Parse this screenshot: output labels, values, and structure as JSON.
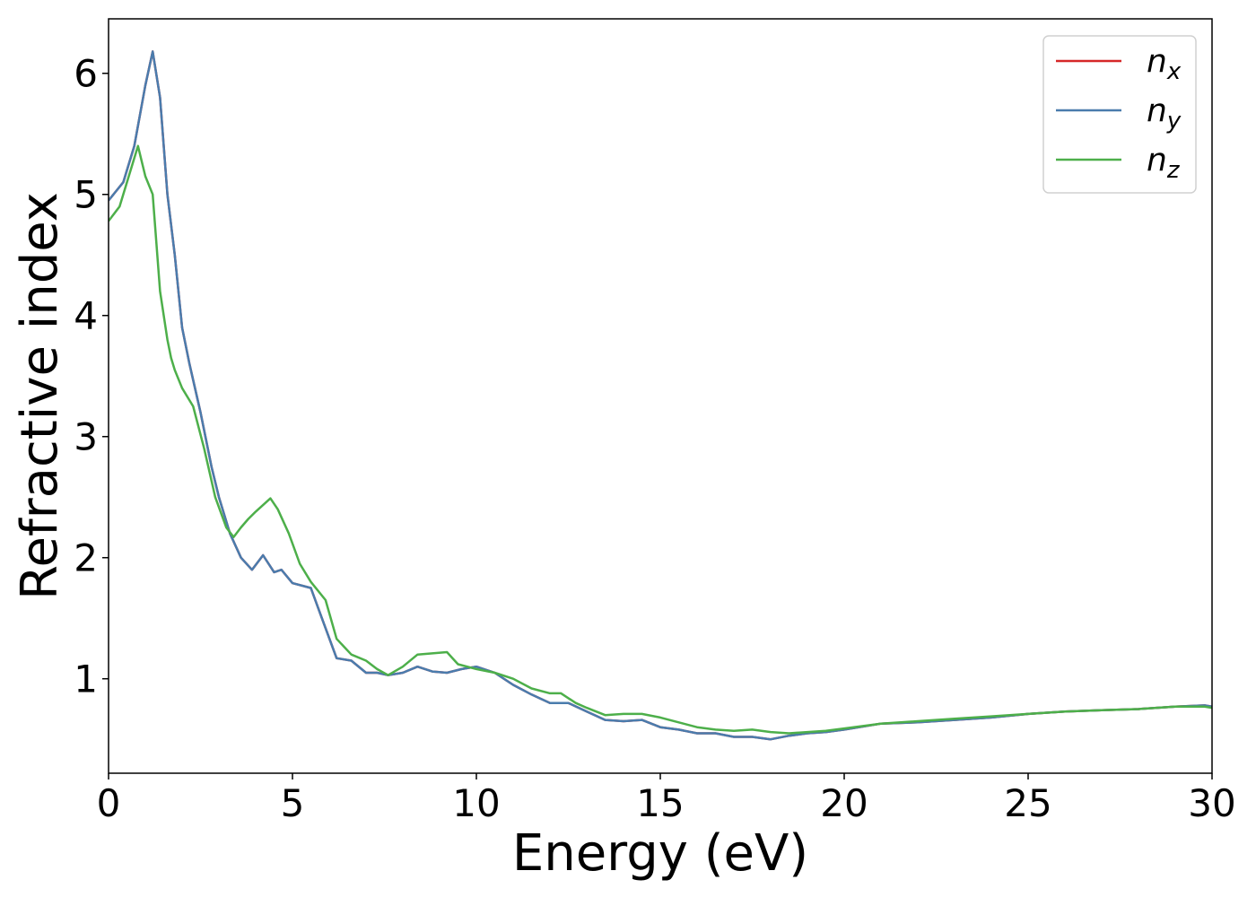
{
  "chart_data": {
    "type": "line",
    "title": "",
    "xlabel": "Energy (eV)",
    "ylabel": "Refractive index",
    "xlim": [
      0,
      30
    ],
    "ylim": [
      0.22,
      6.45
    ],
    "xticks": [
      0,
      5,
      10,
      15,
      20,
      25,
      30
    ],
    "yticks": [
      1,
      2,
      3,
      4,
      5,
      6
    ],
    "grid": false,
    "legend_position": "top-right",
    "series": [
      {
        "name": "n",
        "subscript": "x",
        "color": "#d62728",
        "x": [
          0,
          0.4,
          0.7,
          1.0,
          1.2,
          1.4,
          1.6,
          1.8,
          2.0,
          2.2,
          2.5,
          2.8,
          3.0,
          3.3,
          3.6,
          3.9,
          4.2,
          4.5,
          4.7,
          5.0,
          5.5,
          5.8,
          6.2,
          6.6,
          7.0,
          7.3,
          7.6,
          8.0,
          8.4,
          8.8,
          9.2,
          9.6,
          10.0,
          10.5,
          11.0,
          11.5,
          12.0,
          12.5,
          13.0,
          13.5,
          14.0,
          14.5,
          15.0,
          15.5,
          16.0,
          16.5,
          17.0,
          17.5,
          18.0,
          18.5,
          19.0,
          19.5,
          20.0,
          21.0,
          22.0,
          23.0,
          24.0,
          25.0,
          26.0,
          27.0,
          28.0,
          29.0,
          29.8,
          30.0
        ],
        "values": [
          4.95,
          5.1,
          5.4,
          5.9,
          6.18,
          5.8,
          5.0,
          4.5,
          3.9,
          3.6,
          3.2,
          2.75,
          2.5,
          2.2,
          2.0,
          1.9,
          2.02,
          1.88,
          1.9,
          1.79,
          1.75,
          1.5,
          1.17,
          1.15,
          1.05,
          1.05,
          1.03,
          1.05,
          1.1,
          1.06,
          1.05,
          1.08,
          1.1,
          1.05,
          0.95,
          0.87,
          0.8,
          0.8,
          0.73,
          0.66,
          0.65,
          0.66,
          0.6,
          0.58,
          0.55,
          0.55,
          0.52,
          0.52,
          0.5,
          0.53,
          0.55,
          0.56,
          0.58,
          0.63,
          0.64,
          0.66,
          0.68,
          0.71,
          0.73,
          0.74,
          0.75,
          0.77,
          0.78,
          0.77
        ]
      },
      {
        "name": "n",
        "subscript": "y",
        "color": "#4a7cad",
        "x": [
          0,
          0.4,
          0.7,
          1.0,
          1.2,
          1.4,
          1.6,
          1.8,
          2.0,
          2.2,
          2.5,
          2.8,
          3.0,
          3.3,
          3.6,
          3.9,
          4.2,
          4.5,
          4.7,
          5.0,
          5.5,
          5.8,
          6.2,
          6.6,
          7.0,
          7.3,
          7.6,
          8.0,
          8.4,
          8.8,
          9.2,
          9.6,
          10.0,
          10.5,
          11.0,
          11.5,
          12.0,
          12.5,
          13.0,
          13.5,
          14.0,
          14.5,
          15.0,
          15.5,
          16.0,
          16.5,
          17.0,
          17.5,
          18.0,
          18.5,
          19.0,
          19.5,
          20.0,
          21.0,
          22.0,
          23.0,
          24.0,
          25.0,
          26.0,
          27.0,
          28.0,
          29.0,
          29.8,
          30.0
        ],
        "values": [
          4.95,
          5.1,
          5.4,
          5.9,
          6.18,
          5.8,
          5.0,
          4.5,
          3.9,
          3.6,
          3.2,
          2.75,
          2.5,
          2.2,
          2.0,
          1.9,
          2.02,
          1.88,
          1.9,
          1.79,
          1.75,
          1.5,
          1.17,
          1.15,
          1.05,
          1.05,
          1.03,
          1.05,
          1.1,
          1.06,
          1.05,
          1.08,
          1.1,
          1.05,
          0.95,
          0.87,
          0.8,
          0.8,
          0.73,
          0.66,
          0.65,
          0.66,
          0.6,
          0.58,
          0.55,
          0.55,
          0.52,
          0.52,
          0.5,
          0.53,
          0.55,
          0.56,
          0.58,
          0.63,
          0.64,
          0.66,
          0.68,
          0.71,
          0.73,
          0.74,
          0.75,
          0.77,
          0.78,
          0.77
        ]
      },
      {
        "name": "n",
        "subscript": "z",
        "color": "#4daf4a",
        "x": [
          0,
          0.3,
          0.6,
          0.8,
          1.0,
          1.2,
          1.4,
          1.6,
          1.7,
          1.8,
          2.0,
          2.3,
          2.6,
          2.9,
          3.2,
          3.4,
          3.6,
          3.8,
          4.0,
          4.4,
          4.6,
          4.9,
          5.2,
          5.5,
          5.9,
          6.2,
          6.6,
          7.0,
          7.3,
          7.6,
          8.0,
          8.4,
          8.8,
          9.2,
          9.5,
          10.0,
          10.5,
          11.0,
          11.5,
          12.0,
          12.3,
          12.7,
          13.0,
          13.5,
          14.0,
          14.5,
          15.0,
          15.5,
          16.0,
          16.5,
          17.0,
          17.5,
          18.0,
          18.5,
          19.0,
          19.5,
          20.0,
          21.0,
          22.0,
          23.0,
          24.0,
          25.0,
          26.0,
          27.0,
          28.0,
          29.0,
          29.8,
          30.0
        ],
        "values": [
          4.78,
          4.9,
          5.2,
          5.4,
          5.15,
          5.0,
          4.2,
          3.8,
          3.65,
          3.55,
          3.4,
          3.25,
          2.9,
          2.5,
          2.25,
          2.17,
          2.25,
          2.32,
          2.38,
          2.49,
          2.4,
          2.2,
          1.95,
          1.8,
          1.65,
          1.33,
          1.2,
          1.15,
          1.08,
          1.03,
          1.1,
          1.2,
          1.21,
          1.22,
          1.12,
          1.08,
          1.05,
          1.0,
          0.92,
          0.88,
          0.88,
          0.8,
          0.76,
          0.7,
          0.71,
          0.71,
          0.68,
          0.64,
          0.6,
          0.58,
          0.57,
          0.58,
          0.56,
          0.55,
          0.56,
          0.57,
          0.59,
          0.63,
          0.65,
          0.67,
          0.69,
          0.71,
          0.73,
          0.74,
          0.75,
          0.77,
          0.77,
          0.76
        ]
      }
    ]
  }
}
